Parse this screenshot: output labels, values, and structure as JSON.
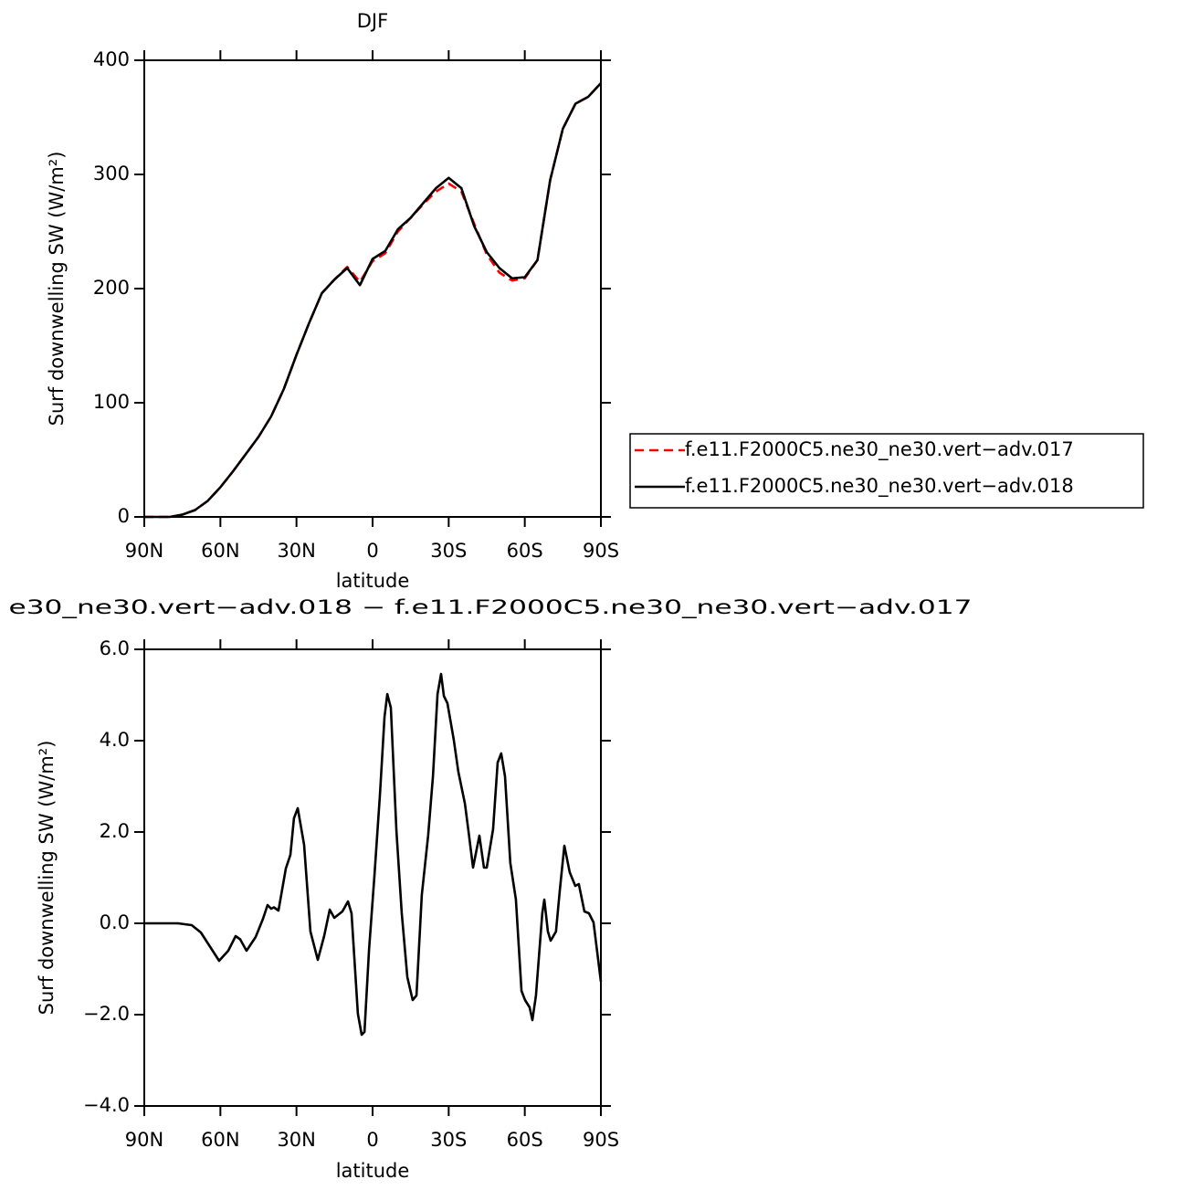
{
  "chart_data": [
    {
      "type": "line",
      "title": "DJF",
      "xlabel": "latitude",
      "ylabel": "Surf downwelling SW (W/m²)",
      "x": [
        90,
        85,
        80,
        75,
        70,
        65,
        60,
        55,
        50,
        45,
        40,
        35,
        30,
        25,
        20,
        15,
        10,
        5,
        0,
        -5,
        -10,
        -15,
        -20,
        -25,
        -30,
        -35,
        -40,
        -45,
        -50,
        -55,
        -60,
        -65,
        -70,
        -75,
        -80,
        -85,
        -90
      ],
      "xlim": [
        90,
        -90
      ],
      "xticks": [
        {
          "value": 90,
          "label": "90N"
        },
        {
          "value": 60,
          "label": "60N"
        },
        {
          "value": 30,
          "label": "30N"
        },
        0,
        {
          "value": -30,
          "label": "30S"
        },
        {
          "value": -60,
          "label": "60S"
        },
        {
          "value": -90,
          "label": "90S"
        }
      ],
      "ylim": [
        0,
        400
      ],
      "yticks": [
        0,
        100,
        200,
        300,
        400
      ],
      "legend": "right",
      "series": [
        {
          "name": "f.e11.F2000C5.ne30_ne30.vert−adv.017",
          "color": "#ff0000",
          "dash": true,
          "values": [
            0,
            0,
            0,
            2,
            6,
            14,
            26,
            40,
            55,
            70,
            88,
            112,
            142,
            170,
            196,
            208,
            219,
            206,
            224,
            231,
            250,
            262,
            274,
            285,
            292,
            285,
            257,
            230,
            214,
            207,
            209,
            225,
            295,
            340,
            362,
            368,
            380
          ]
        },
        {
          "name": "f.e11.F2000C5.ne30_ne30.vert−adv.018",
          "color": "#000000",
          "dash": false,
          "values": [
            0,
            0,
            0,
            2,
            6,
            14,
            26,
            40,
            55,
            70,
            88,
            112,
            142,
            170,
            196,
            208,
            218,
            203,
            226,
            233,
            252,
            262,
            275,
            288,
            297,
            288,
            255,
            232,
            218,
            209,
            210,
            225,
            295,
            340,
            362,
            368,
            380
          ]
        }
      ]
    },
    {
      "type": "line",
      "title": "e30_ne30.vert−adv.018 − f.e11.F2000C5.ne30_ne30.vert−adv.017",
      "xlabel": "latitude",
      "ylabel": "Surf downwelling SW (W/m²)",
      "x": [
        90,
        76.7,
        71.3,
        67.7,
        60.5,
        56.9,
        54,
        52.2,
        49.7,
        46.1,
        43.2,
        41.4,
        40,
        38.9,
        37.1,
        34.2,
        32.4,
        31,
        29.5,
        27,
        24.5,
        21.6,
        19.1,
        16.9,
        15.1,
        11.9,
        9.7,
        8.3,
        5.8,
        4.3,
        3.2,
        1.4,
        -0.7,
        -2.9,
        -4.7,
        -5.8,
        -7.2,
        -9.4,
        -11.5,
        -13.7,
        -15.8,
        -17.3,
        -19.4,
        -21.9,
        -23.8,
        -25.6,
        -27,
        -28.1,
        -29.5,
        -32,
        -33.8,
        -36.4,
        -37.8,
        -39.6,
        -42.1,
        -43.9,
        -45,
        -47.5,
        -49.3,
        -50.7,
        -52.2,
        -54.3,
        -56.5,
        -58.7,
        -60.1,
        -61.9,
        -63,
        -64.4,
        -66.9,
        -67.7,
        -69.1,
        -70.2,
        -72.3,
        -73.8,
        -75.6,
        -77.7,
        -79.9,
        -81.3,
        -83.5,
        -85.3,
        -87.1,
        -90
      ],
      "xlim": [
        90,
        -90
      ],
      "xticks": [
        {
          "value": 90,
          "label": "90N"
        },
        {
          "value": 60,
          "label": "60N"
        },
        {
          "value": 30,
          "label": "30N"
        },
        0,
        {
          "value": -30,
          "label": "30S"
        },
        {
          "value": -60,
          "label": "60S"
        },
        {
          "value": -90,
          "label": "90S"
        }
      ],
      "ylim": [
        -4,
        6
      ],
      "yticks": [
        {
          "value": -4,
          "label": "−4.0"
        },
        {
          "value": -2,
          "label": "−2.0"
        },
        {
          "value": 0,
          "label": "0.0"
        },
        {
          "value": 2,
          "label": "2.0"
        },
        {
          "value": 4,
          "label": "4.0"
        },
        {
          "value": 6,
          "label": "6.0"
        }
      ],
      "series": [
        {
          "color": "#000000",
          "dash": false,
          "values": [
            0,
            0,
            -0.04,
            -0.2,
            -0.82,
            -0.6,
            -0.28,
            -0.35,
            -0.6,
            -0.3,
            0.1,
            0.4,
            0.32,
            0.35,
            0.28,
            1.2,
            1.5,
            2.3,
            2.52,
            1.72,
            -0.18,
            -0.8,
            -0.28,
            0.3,
            0.12,
            0.26,
            0.48,
            0.22,
            -1.98,
            -2.44,
            -2.38,
            -0.58,
            1.02,
            2.82,
            4.52,
            5.02,
            4.72,
            2.02,
            0.22,
            -1.18,
            -1.68,
            -1.58,
            0.62,
            1.92,
            3.22,
            5.02,
            5.46,
            4.98,
            4.82,
            4.02,
            3.32,
            2.62,
            2.02,
            1.22,
            1.92,
            1.22,
            1.22,
            2.06,
            3.52,
            3.72,
            3.22,
            1.32,
            0.52,
            -1.48,
            -1.68,
            -1.84,
            -2.12,
            -1.58,
            0.22,
            0.52,
            -0.18,
            -0.38,
            -0.18,
            0.72,
            1.7,
            1.12,
            0.82,
            0.86,
            0.26,
            0.22,
            0.02,
            -1.28
          ]
        }
      ]
    }
  ]
}
